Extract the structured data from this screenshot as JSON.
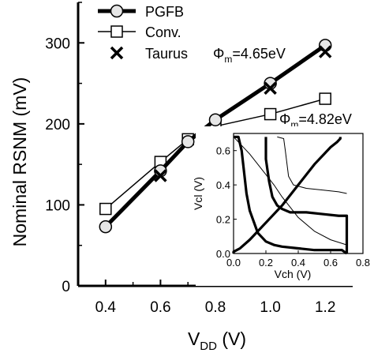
{
  "chart_data": {
    "type": "line",
    "xlabel": "V",
    "xlabel_sub": "DD",
    "xlabel_unit": " (V)",
    "ylabel": "Nominal RSNM (mV)",
    "xlim": [
      0.3,
      1.3
    ],
    "ylim": [
      0,
      350
    ],
    "xticks": [
      0.4,
      0.6,
      0.8,
      1.0,
      1.2
    ],
    "xtick_labels": [
      "0.4",
      "0.6",
      "0.8",
      "1.0",
      "1.2"
    ],
    "yticks": [
      0,
      100,
      200,
      300
    ],
    "ytick_labels": [
      "0",
      "100",
      "200",
      "300"
    ],
    "legend_position": "top-left",
    "series": [
      {
        "name": "PGFB",
        "marker": "circle",
        "line": "thick",
        "x": [
          0.4,
          0.6,
          0.7,
          0.8,
          1.0,
          1.2
        ],
        "y": [
          73,
          142,
          178,
          205,
          250,
          297
        ]
      },
      {
        "name": "Conv.",
        "marker": "square",
        "line": "thin",
        "x": [
          0.4,
          0.6,
          0.7,
          0.8,
          1.0,
          1.2
        ],
        "y": [
          95,
          153,
          181,
          197,
          212,
          231
        ]
      },
      {
        "name": "Taurus",
        "marker": "x",
        "line": "none",
        "x": [
          0.6,
          0.8,
          1.0,
          1.2
        ],
        "y": [
          136,
          188,
          244,
          289
        ]
      }
    ],
    "annotations": [
      {
        "phi": "Φ",
        "sub": "m",
        "text": "=4.65eV"
      },
      {
        "phi": "Φ",
        "sub": "m",
        "text": "=4.82eV"
      }
    ],
    "inset": {
      "type": "line",
      "xlabel": "Vch (V)",
      "ylabel": "Vcl (V)",
      "xlim": [
        0,
        0.8
      ],
      "ylim": [
        0,
        0.7
      ],
      "xtick_labels": [
        "0.0",
        "0.2",
        "0.4",
        "0.6",
        "0.8"
      ],
      "ytick_labels": [
        "0.0",
        "0.2",
        "0.4",
        "0.6"
      ],
      "curves": [
        {
          "style": "thick",
          "x": [
            0,
            0.03,
            0.05,
            0.08,
            0.1,
            0.15,
            0.2,
            0.25,
            0.3,
            0.4,
            0.5,
            0.6,
            0.65,
            0.67,
            0.7
          ],
          "y": [
            0.68,
            0.68,
            0.6,
            0.35,
            0.25,
            0.12,
            0.07,
            0.05,
            0.04,
            0.03,
            0.02,
            0.02,
            0.02,
            0.02,
            0.0
          ]
        },
        {
          "style": "thick",
          "x": [
            0.0,
            0.0,
            0.04,
            0.1,
            0.2,
            0.3,
            0.4,
            0.5,
            0.6,
            0.64,
            0.65,
            0.66,
            0.66
          ],
          "y": [
            0.0,
            0.01,
            0.03,
            0.08,
            0.18,
            0.28,
            0.4,
            0.52,
            0.62,
            0.65,
            0.66,
            0.67,
            0.68
          ]
        },
        {
          "style": "thick",
          "x": [
            0.2,
            0.2,
            0.22,
            0.24,
            0.27,
            0.3,
            0.35,
            0.45,
            0.55,
            0.65,
            0.7,
            0.7
          ],
          "y": [
            0.68,
            0.55,
            0.42,
            0.33,
            0.28,
            0.26,
            0.24,
            0.24,
            0.23,
            0.22,
            0.22,
            0.0
          ]
        },
        {
          "style": "thin",
          "x": [
            0,
            0.05,
            0.1,
            0.15,
            0.2,
            0.25,
            0.3,
            0.35,
            0.4,
            0.5,
            0.6,
            0.7
          ],
          "y": [
            0.68,
            0.63,
            0.58,
            0.52,
            0.46,
            0.4,
            0.33,
            0.27,
            0.21,
            0.13,
            0.08,
            0.05
          ]
        },
        {
          "style": "thin",
          "x": [
            0.27,
            0.31,
            0.32,
            0.34,
            0.37,
            0.45,
            0.55,
            0.65,
            0.7
          ],
          "y": [
            0.68,
            0.67,
            0.6,
            0.45,
            0.4,
            0.38,
            0.37,
            0.36,
            0.35
          ]
        }
      ]
    }
  }
}
